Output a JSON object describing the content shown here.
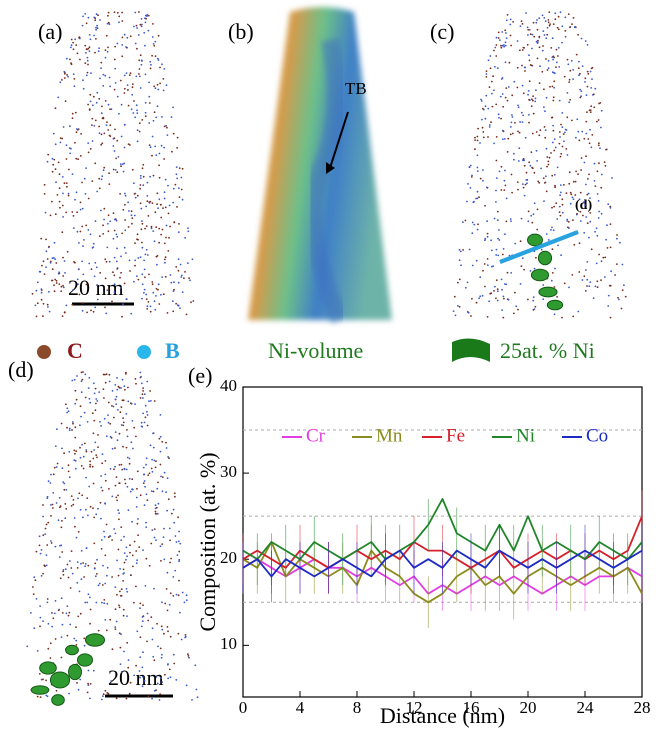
{
  "figure": {
    "panel_labels": [
      "(a)",
      "(b)",
      "(c)",
      "(d)",
      "(e)"
    ],
    "scale_bar": "20 nm",
    "tb_label": "TB",
    "line_label": "(d)",
    "legend": {
      "carbon": "C",
      "boron": "B",
      "volume": "Ni-volume",
      "iso": "25at. % Ni"
    }
  },
  "chart_data": {
    "type": "line",
    "xlabel": "Distance (nm)",
    "ylabel": "Composition (at. %)",
    "x": [
      0,
      1,
      2,
      3,
      4,
      5,
      6,
      7,
      8,
      9,
      10,
      11,
      12,
      13,
      14,
      15,
      16,
      17,
      18,
      19,
      20,
      21,
      22,
      23,
      24,
      25,
      26,
      27,
      28
    ],
    "xlim": [
      0,
      28
    ],
    "xticks": [
      0,
      4,
      8,
      12,
      16,
      20,
      24,
      28
    ],
    "ylim": [
      4,
      40
    ],
    "yticks": [
      10,
      20,
      30,
      40
    ],
    "grid_yticks": [
      15,
      25,
      35
    ],
    "grid": true,
    "series": [
      {
        "name": "Cr",
        "color": "#e23de2",
        "error": 3,
        "values": [
          19,
          20,
          19,
          18,
          19,
          20,
          19,
          19,
          18,
          19,
          18,
          17,
          18,
          16,
          17,
          16,
          17,
          18,
          17,
          18,
          17,
          16,
          17,
          18,
          17,
          18,
          18,
          19,
          18
        ]
      },
      {
        "name": "Mn",
        "color": "#8c8c1e",
        "error": 3,
        "values": [
          20,
          19,
          22,
          18,
          20,
          19,
          18,
          19,
          17,
          21,
          19,
          18,
          16,
          15,
          16,
          18,
          19,
          17,
          18,
          16,
          18,
          19,
          18,
          17,
          18,
          19,
          18,
          19,
          16
        ]
      },
      {
        "name": "Fe",
        "color": "#d6202a",
        "error": 3,
        "values": [
          20,
          21,
          20,
          19,
          21,
          20,
          19,
          20,
          21,
          20,
          21,
          20,
          22,
          21,
          21,
          20,
          19,
          20,
          21,
          19,
          20,
          21,
          20,
          21,
          20,
          21,
          20,
          21,
          25
        ]
      },
      {
        "name": "Ni",
        "color": "#21862a",
        "error": 3,
        "values": [
          21,
          20,
          22,
          21,
          20,
          22,
          21,
          20,
          21,
          22,
          20,
          21,
          22,
          24,
          27,
          23,
          22,
          21,
          24,
          21,
          25,
          21,
          22,
          21,
          20,
          22,
          21,
          20,
          22
        ]
      },
      {
        "name": "Co",
        "color": "#1d2bc4",
        "error": 3,
        "values": [
          19,
          20,
          18,
          20,
          19,
          18,
          19,
          20,
          19,
          18,
          20,
          21,
          19,
          20,
          19,
          21,
          20,
          19,
          21,
          20,
          19,
          20,
          19,
          20,
          21,
          20,
          19,
          20,
          21
        ]
      }
    ]
  }
}
